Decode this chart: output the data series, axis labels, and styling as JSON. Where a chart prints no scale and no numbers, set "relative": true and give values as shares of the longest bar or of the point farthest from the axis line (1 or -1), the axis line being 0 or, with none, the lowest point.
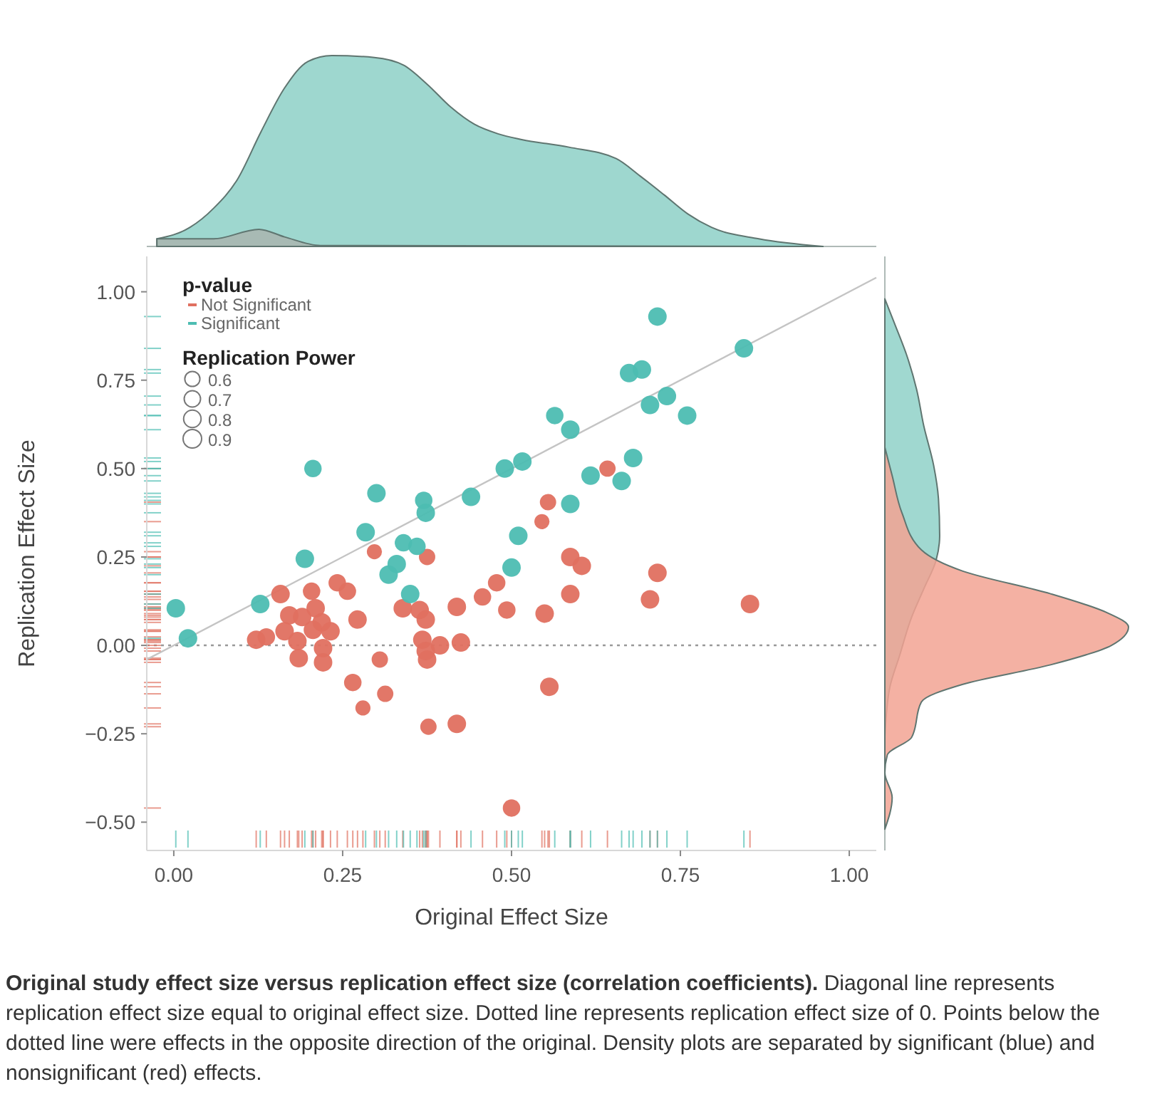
{
  "chart_data": [
    {
      "type": "area",
      "relative": true,
      "xlim": [
        -0.04,
        1.04
      ],
      "tick_labels": false,
      "series": [
        {
          "color": "#93d3ca",
          "x": [
            -0.025,
            0.024,
            0.059,
            0.094,
            0.129,
            0.164,
            0.199,
            0.234,
            0.297,
            0.34,
            0.375,
            0.41,
            0.445,
            0.48,
            0.515,
            0.585,
            0.655,
            0.69,
            0.726,
            0.761,
            0.796,
            0.866,
            0.961
          ],
          "values": [
            0.04,
            0.1,
            0.2,
            0.35,
            0.6,
            0.83,
            0.97,
            1,
            0.99,
            0.95,
            0.85,
            0.73,
            0.64,
            0.59,
            0.56,
            0.52,
            0.46,
            0.37,
            0.27,
            0.17,
            0.1,
            0.04,
            0
          ]
        },
        {
          "color": "#a8b7b0",
          "x": [
            -0.025,
            0.059,
            0.126,
            0.164,
            0.217,
            0.961
          ],
          "values": [
            0.04,
            0.04,
            0.09,
            0.05,
            0.005,
            0
          ]
        }
      ]
    },
    {
      "type": "bubble",
      "xlim": [
        -0.04,
        1.04
      ],
      "ylim": [
        -0.58,
        1.1
      ],
      "xticks": [
        {
          "value": 0,
          "label": "0.00"
        },
        {
          "value": 0.25,
          "label": "0.25"
        },
        {
          "value": 0.5,
          "label": "0.50"
        },
        {
          "value": 0.75,
          "label": "0.75"
        },
        {
          "value": 1,
          "label": "1.00"
        }
      ],
      "yticks": [
        {
          "value": -0.5,
          "label": "−0.50"
        },
        {
          "value": -0.25,
          "label": "−0.25"
        },
        {
          "value": 0,
          "label": "0.00"
        },
        {
          "value": 0.25,
          "label": "0.25"
        },
        {
          "value": 0.5,
          "label": "0.50"
        },
        {
          "value": 0.75,
          "label": "0.75"
        },
        {
          "value": 1,
          "label": "1.00"
        }
      ],
      "xlabel": "Original Effect Size",
      "ylabel": "Replication Effect Size",
      "legend": "top left",
      "legend_title": "p-value",
      "size_legend": [
        0.6,
        0.7,
        0.8,
        0.9
      ],
      "ref_lines": [
        {
          "axis": "y",
          "value": 0,
          "color": "#999999",
          "line_style": "dotted"
        }
      ],
      "annotations": [
        "Replication Power",
        "Original study effect size versus replication effect size (correlation coefficients).",
        "Diagonal line represents replication effect size equal to original effect size. Dotted line represents replication effect size of 0. Points below the dotted line were effects in the opposite direction of the original. Density plots are separated by significant (blue) and nonsignificant (red) effects."
      ],
      "series": [
        {
          "name": "Not Significant",
          "color": "#e07060",
          "x": [
            0.642,
            0.554,
            0.545,
            0.587,
            0.604,
            0.716,
            0.587,
            0.705,
            0.853,
            0.549,
            0.556,
            0.5,
            0.375,
            0.242,
            0.257,
            0.478,
            0.457,
            0.419,
            0.493,
            0.158,
            0.204,
            0.339,
            0.364,
            0.373,
            0.272,
            0.171,
            0.164,
            0.21,
            0.219,
            0.206,
            0.232,
            0.19,
            0.122,
            0.137,
            0.183,
            0.221,
            0.221,
            0.185,
            0.368,
            0.394,
            0.425,
            0.375,
            0.373,
            0.305,
            0.265,
            0.313,
            0.28,
            0.377,
            0.419,
            0.297
          ],
          "values": [
            0.5,
            0.405,
            0.35,
            0.25,
            0.225,
            0.205,
            0.145,
            0.13,
            0.117,
            0.09,
            -0.117,
            -0.46,
            0.25,
            0.177,
            0.153,
            0.177,
            0.137,
            0.109,
            0.1,
            0.145,
            0.153,
            0.105,
            0.1,
            0.073,
            0.073,
            0.085,
            0.04,
            0.105,
            0.065,
            0.044,
            0.04,
            0.08,
            0.016,
            0.024,
            0.012,
            -0.008,
            -0.048,
            -0.036,
            0.016,
            0,
            0.008,
            -0.04,
            -0.016,
            -0.04,
            -0.105,
            -0.137,
            -0.177,
            -0.23,
            -0.222,
            0.265
          ],
          "sizes": [
            0.7,
            0.7,
            0.6,
            0.9,
            0.9,
            0.9,
            0.9,
            0.9,
            0.9,
            0.9,
            0.9,
            0.8,
            0.7,
            0.8,
            0.8,
            0.8,
            0.8,
            0.9,
            0.8,
            0.9,
            0.8,
            0.9,
            0.9,
            0.9,
            0.9,
            0.9,
            0.9,
            0.9,
            0.9,
            0.9,
            0.9,
            0.9,
            0.9,
            0.8,
            0.9,
            0.9,
            0.9,
            0.9,
            0.9,
            0.9,
            0.9,
            0.9,
            0.9,
            0.7,
            0.8,
            0.7,
            0.6,
            0.7,
            0.9,
            0.6
          ]
        },
        {
          "name": "Significant",
          "color": "#4dbdb2",
          "x": [
            0.206,
            0.3,
            0.37,
            0.373,
            0.44,
            0.49,
            0.516,
            0.284,
            0.194,
            0.34,
            0.36,
            0.33,
            0.318,
            0.35,
            0.128,
            0.003,
            0.021,
            0.51,
            0.5,
            0.716,
            0.844,
            0.674,
            0.693,
            0.705,
            0.73,
            0.76,
            0.564,
            0.587,
            0.68,
            0.617,
            0.663,
            0.587
          ],
          "values": [
            0.5,
            0.43,
            0.41,
            0.375,
            0.42,
            0.5,
            0.52,
            0.32,
            0.245,
            0.29,
            0.28,
            0.23,
            0.2,
            0.145,
            0.117,
            0.105,
            0.02,
            0.31,
            0.22,
            0.93,
            0.84,
            0.77,
            0.78,
            0.68,
            0.705,
            0.65,
            0.65,
            0.61,
            0.53,
            0.48,
            0.465,
            0.4
          ],
          "sizes": [
            0.8,
            0.9,
            0.8,
            0.9,
            0.9,
            0.9,
            0.9,
            0.9,
            0.9,
            0.8,
            0.8,
            0.9,
            0.9,
            0.9,
            0.9,
            0.9,
            0.9,
            0.9,
            0.9,
            0.9,
            0.9,
            0.9,
            0.9,
            0.9,
            0.9,
            0.9,
            0.8,
            0.9,
            0.9,
            0.9,
            0.9,
            0.9
          ]
        },
        {
          "type": "line",
          "color": "#c4c4c4",
          "x": [
            -0.04,
            1.04
          ],
          "values": [
            -0.04,
            1.04
          ]
        }
      ]
    },
    {
      "type": "area",
      "orientation": "horizontal",
      "relative": true,
      "ylim": [
        -0.58,
        1.1
      ],
      "tick_labels": false,
      "series": [
        {
          "color": "#8fd1c8",
          "x": [
            0.98,
            0.91,
            0.82,
            0.725,
            0.62,
            0.51,
            0.415,
            0.31,
            0.24,
            0.16,
            0.08,
            -0.03,
            -0.12,
            -0.26
          ],
          "values": [
            0,
            0.04,
            0.09,
            0.13,
            0.16,
            0.2,
            0.22,
            0.225,
            0.21,
            0.16,
            0.11,
            0.06,
            0.02,
            0
          ]
        },
        {
          "color": "#f2a393",
          "x": [
            0.56,
            0.48,
            0.375,
            0.27,
            0.21,
            0.146,
            0.093,
            0.052,
            0,
            -0.055,
            -0.11,
            -0.16,
            -0.26,
            -0.31,
            -0.36,
            -0.43,
            -0.52
          ],
          "values": [
            0,
            0.03,
            0.07,
            0.15,
            0.32,
            0.68,
            0.91,
            1,
            0.93,
            0.68,
            0.32,
            0.15,
            0.11,
            0.01,
            0,
            0.03,
            0
          ]
        }
      ]
    }
  ]
}
